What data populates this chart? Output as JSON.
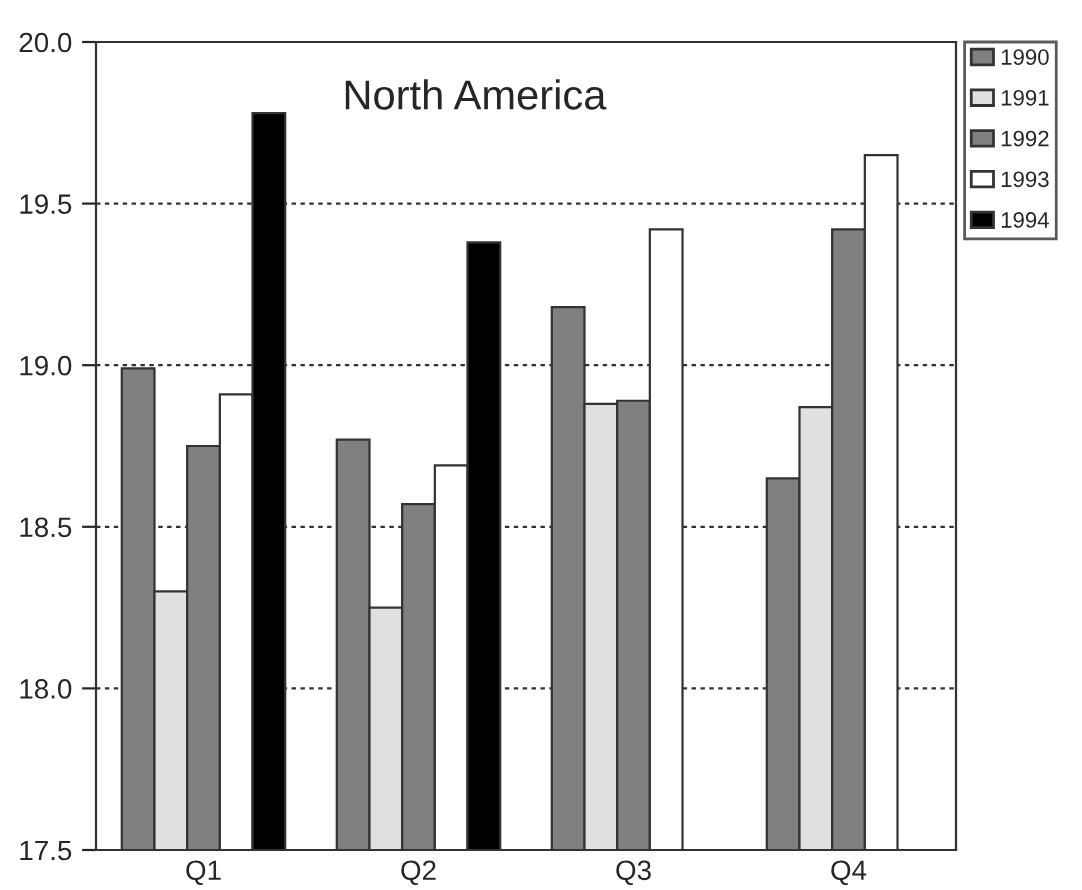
{
  "chart_data": {
    "type": "bar",
    "title": "North America",
    "categories": [
      "Q1",
      "Q2",
      "Q3",
      "Q4"
    ],
    "series": [
      {
        "name": "1990",
        "color": "#808080",
        "values": [
          18.99,
          18.77,
          19.18,
          18.65
        ]
      },
      {
        "name": "1991",
        "color": "#e0e0e0",
        "values": [
          18.3,
          18.25,
          18.88,
          18.87
        ]
      },
      {
        "name": "1992",
        "color": "#808080",
        "values": [
          18.75,
          18.57,
          18.89,
          19.42
        ]
      },
      {
        "name": "1993",
        "color": "#ffffff",
        "values": [
          18.91,
          18.69,
          19.42,
          19.65
        ]
      },
      {
        "name": "1994",
        "color": "#000000",
        "values": [
          19.78,
          19.38,
          null,
          null
        ]
      }
    ],
    "ylim": [
      17.5,
      20.0
    ],
    "yticks": [
      {
        "value": 17.5,
        "label": "17.5"
      },
      {
        "value": 18.0,
        "label": "18.0"
      },
      {
        "value": 18.5,
        "label": "18.5"
      },
      {
        "value": 19.0,
        "label": "19.0"
      },
      {
        "value": 19.5,
        "label": "19.5"
      },
      {
        "value": 20.0,
        "label": "20.0"
      }
    ],
    "grid": "y",
    "legend": "right"
  }
}
